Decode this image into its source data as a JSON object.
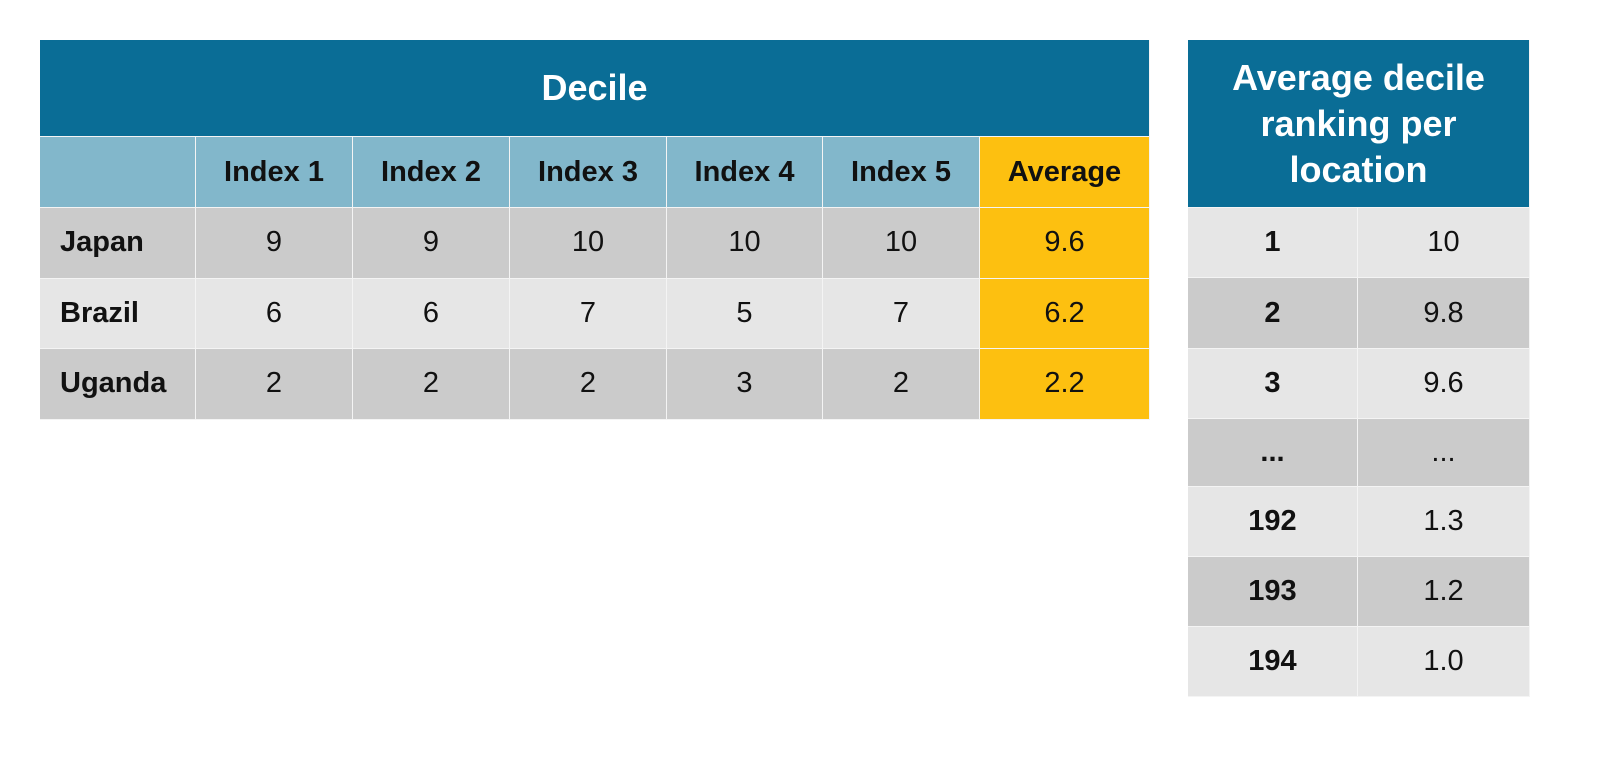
{
  "decile_table": {
    "title": "Decile",
    "columns": [
      "Index 1",
      "Index 2",
      "Index 3",
      "Index 4",
      "Index 5",
      "Average"
    ],
    "rows": [
      {
        "label": "Japan",
        "cells": [
          "9",
          "9",
          "10",
          "10",
          "10",
          "9.6"
        ]
      },
      {
        "label": "Brazil",
        "cells": [
          "6",
          "6",
          "7",
          "5",
          "7",
          "6.2"
        ]
      },
      {
        "label": "Uganda",
        "cells": [
          "2",
          "2",
          "2",
          "3",
          "2",
          "2.2"
        ]
      }
    ]
  },
  "ranking_table": {
    "title": "Average decile ranking per location",
    "rows": [
      [
        "1",
        "10"
      ],
      [
        "2",
        "9.8"
      ],
      [
        "3",
        "9.6"
      ],
      [
        "...",
        "..."
      ],
      [
        "192",
        "1.3"
      ],
      [
        "193",
        "1.2"
      ],
      [
        "194",
        "1.0"
      ]
    ]
  }
}
